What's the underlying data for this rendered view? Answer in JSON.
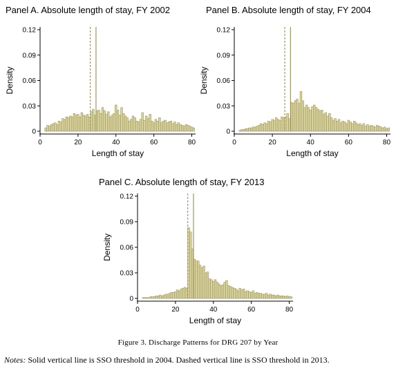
{
  "figure": {
    "caption": "Figure 3. Discharge Patterns for DRG 207 by Year",
    "notes_label": "Notes:",
    "notes_text": " Solid vertical line is SSO threshold in 2004. Dashed vertical line is SSO threshold in 2013."
  },
  "colors": {
    "bar_fill": "#d9d3a0",
    "bar_edge": "#9b9456",
    "threshold_line": "#8a8340",
    "axis": "#000000"
  },
  "chart_data": [
    {
      "type": "bar",
      "title": "Panel A. Absolute length of stay, FY 2002",
      "xlabel": "Length of stay",
      "ylabel": "Density",
      "xlim": [
        0,
        82
      ],
      "ylim": [
        0,
        0.12
      ],
      "xticks": [
        "0",
        "20",
        "40",
        "60",
        "80"
      ],
      "yticks": [
        "0",
        "0.03",
        "0.06",
        "0.09",
        "0.12"
      ],
      "grid": false,
      "solid_line_x": 29.5,
      "dashed_line_x": 26.5,
      "x": [
        3,
        4,
        5,
        6,
        7,
        8,
        9,
        10,
        11,
        12,
        13,
        14,
        15,
        16,
        17,
        18,
        19,
        20,
        21,
        22,
        23,
        24,
        25,
        26,
        27,
        28,
        29,
        30,
        31,
        32,
        33,
        34,
        35,
        36,
        37,
        38,
        39,
        40,
        41,
        42,
        43,
        44,
        45,
        46,
        47,
        48,
        49,
        50,
        51,
        52,
        53,
        54,
        55,
        56,
        57,
        58,
        59,
        60,
        61,
        62,
        63,
        64,
        65,
        66,
        67,
        68,
        69,
        70,
        71,
        72,
        73,
        74,
        75,
        76,
        77,
        78,
        79,
        80,
        81
      ],
      "values": [
        0.004,
        0.007,
        0.006,
        0.008,
        0.009,
        0.01,
        0.008,
        0.012,
        0.011,
        0.015,
        0.014,
        0.017,
        0.016,
        0.018,
        0.017,
        0.021,
        0.019,
        0.02,
        0.017,
        0.022,
        0.019,
        0.018,
        0.02,
        0.017,
        0.023,
        0.026,
        0.019,
        0.024,
        0.025,
        0.021,
        0.028,
        0.024,
        0.02,
        0.023,
        0.017,
        0.019,
        0.021,
        0.031,
        0.025,
        0.019,
        0.028,
        0.021,
        0.018,
        0.016,
        0.012,
        0.014,
        0.018,
        0.016,
        0.012,
        0.011,
        0.014,
        0.022,
        0.013,
        0.018,
        0.015,
        0.02,
        0.012,
        0.01,
        0.014,
        0.012,
        0.016,
        0.01,
        0.012,
        0.013,
        0.01,
        0.011,
        0.012,
        0.009,
        0.011,
        0.008,
        0.01,
        0.008,
        0.007,
        0.006,
        0.008,
        0.007,
        0.006,
        0.005,
        0.004
      ]
    },
    {
      "type": "bar",
      "title": "Panel B. Absolute length of stay, FY 2004",
      "xlabel": "Length of stay",
      "ylabel": "Density",
      "xlim": [
        0,
        82
      ],
      "ylim": [
        0,
        0.12
      ],
      "xticks": [
        "0",
        "20",
        "40",
        "60",
        "80"
      ],
      "yticks": [
        "0",
        "0.03",
        "0.06",
        "0.09",
        "0.12"
      ],
      "grid": false,
      "solid_line_x": 29.5,
      "dashed_line_x": 26.5,
      "x": [
        3,
        4,
        5,
        6,
        7,
        8,
        9,
        10,
        11,
        12,
        13,
        14,
        15,
        16,
        17,
        18,
        19,
        20,
        21,
        22,
        23,
        24,
        25,
        26,
        27,
        28,
        29,
        30,
        31,
        32,
        33,
        34,
        35,
        36,
        37,
        38,
        39,
        40,
        41,
        42,
        43,
        44,
        45,
        46,
        47,
        48,
        49,
        50,
        51,
        52,
        53,
        54,
        55,
        56,
        57,
        58,
        59,
        60,
        61,
        62,
        63,
        64,
        65,
        66,
        67,
        68,
        69,
        70,
        71,
        72,
        73,
        74,
        75,
        76,
        77,
        78,
        79,
        80,
        81
      ],
      "values": [
        0.001,
        0.002,
        0.002,
        0.003,
        0.003,
        0.004,
        0.004,
        0.005,
        0.005,
        0.006,
        0.007,
        0.009,
        0.008,
        0.01,
        0.009,
        0.012,
        0.011,
        0.014,
        0.013,
        0.016,
        0.014,
        0.013,
        0.017,
        0.016,
        0.017,
        0.021,
        0.015,
        0.034,
        0.033,
        0.036,
        0.038,
        0.033,
        0.047,
        0.036,
        0.028,
        0.031,
        0.028,
        0.025,
        0.029,
        0.031,
        0.028,
        0.026,
        0.024,
        0.025,
        0.02,
        0.022,
        0.018,
        0.021,
        0.016,
        0.013,
        0.015,
        0.012,
        0.014,
        0.01,
        0.012,
        0.011,
        0.009,
        0.013,
        0.011,
        0.009,
        0.012,
        0.01,
        0.008,
        0.009,
        0.007,
        0.009,
        0.006,
        0.008,
        0.006,
        0.007,
        0.006,
        0.005,
        0.007,
        0.006,
        0.005,
        0.004,
        0.005,
        0.003,
        0.004
      ]
    },
    {
      "type": "bar",
      "title": "Panel C. Absolute length of stay, FY 2013",
      "xlabel": "Length of stay",
      "ylabel": "Density",
      "xlim": [
        0,
        82
      ],
      "ylim": [
        0,
        0.12
      ],
      "xticks": [
        "0",
        "20",
        "40",
        "60",
        "80"
      ],
      "yticks": [
        "0",
        "0.03",
        "0.06",
        "0.09",
        "0.12"
      ],
      "grid": false,
      "solid_line_x": 29.5,
      "dashed_line_x": 26.5,
      "x": [
        3,
        4,
        5,
        6,
        7,
        8,
        9,
        10,
        11,
        12,
        13,
        14,
        15,
        16,
        17,
        18,
        19,
        20,
        21,
        22,
        23,
        24,
        25,
        26,
        27,
        28,
        29,
        30,
        31,
        32,
        33,
        34,
        35,
        36,
        37,
        38,
        39,
        40,
        41,
        42,
        43,
        44,
        45,
        46,
        47,
        48,
        49,
        50,
        51,
        52,
        53,
        54,
        55,
        56,
        57,
        58,
        59,
        60,
        61,
        62,
        63,
        64,
        65,
        66,
        67,
        68,
        69,
        70,
        71,
        72,
        73,
        74,
        75,
        76,
        77,
        78,
        79,
        80,
        81
      ],
      "values": [
        0.001,
        0.001,
        0.001,
        0.001,
        0.002,
        0.002,
        0.002,
        0.003,
        0.003,
        0.004,
        0.003,
        0.004,
        0.005,
        0.005,
        0.006,
        0.007,
        0.007,
        0.008,
        0.01,
        0.009,
        0.011,
        0.012,
        0.013,
        0.012,
        0.083,
        0.078,
        0.058,
        0.046,
        0.044,
        0.044,
        0.039,
        0.036,
        0.038,
        0.03,
        0.031,
        0.023,
        0.022,
        0.02,
        0.022,
        0.019,
        0.017,
        0.015,
        0.016,
        0.019,
        0.021,
        0.015,
        0.014,
        0.013,
        0.012,
        0.011,
        0.009,
        0.012,
        0.01,
        0.011,
        0.008,
        0.009,
        0.008,
        0.007,
        0.009,
        0.006,
        0.007,
        0.006,
        0.006,
        0.005,
        0.005,
        0.006,
        0.004,
        0.005,
        0.004,
        0.004,
        0.003,
        0.004,
        0.003,
        0.003,
        0.003,
        0.002,
        0.003,
        0.002,
        0.002
      ]
    }
  ]
}
